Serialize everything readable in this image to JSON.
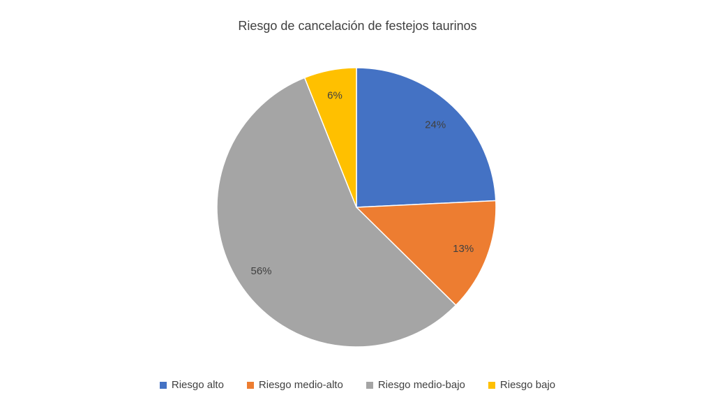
{
  "chart_data": {
    "type": "pie",
    "title": "Riesgo de cancelación de festejos taurinos",
    "slices": [
      {
        "label": "Riesgo alto",
        "value": 24,
        "data_label": "24%",
        "color": "#4472C4"
      },
      {
        "label": "Riesgo medio-alto",
        "value": 13,
        "data_label": "13%",
        "color": "#ED7D31"
      },
      {
        "label": "Riesgo medio-bajo",
        "value": 56,
        "data_label": "56%",
        "color": "#A5A5A5"
      },
      {
        "label": "Riesgo bajo",
        "value": 6,
        "data_label": "6%",
        "color": "#FFC000"
      }
    ],
    "start_angle_deg": 0,
    "direction": "clockwise",
    "legend_position": "bottom",
    "data_label_color": "#404040",
    "title_color": "#404040",
    "slice_border_color": "#ffffff"
  }
}
